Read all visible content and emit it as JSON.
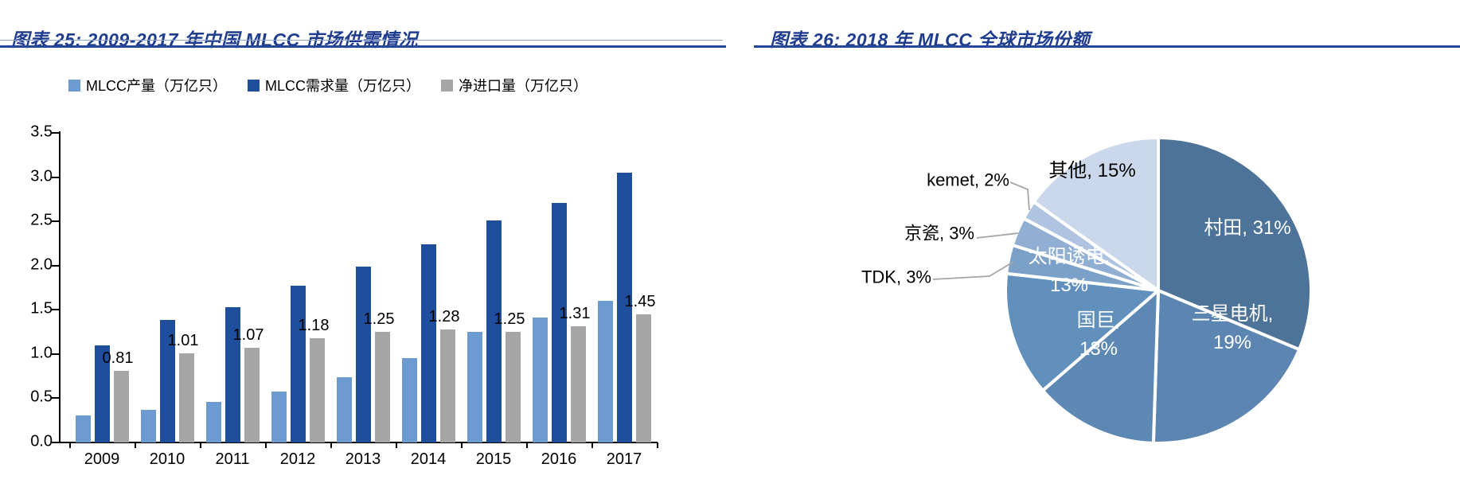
{
  "panels": {
    "left": {
      "title": "图表 25: 2009-2017 年中国 MLCC 市场供需情况",
      "title_color": "#1F3C8F",
      "rule_color": "#24479A",
      "thin_rule_color": "#8FA5CE"
    },
    "right": {
      "title": "图表 26: 2018 年 MLCC 全球市场份额",
      "title_color": "#1F3C8F",
      "rule_color": "#24479A"
    }
  },
  "chart_data": [
    {
      "type": "bar",
      "title": "图表 25: 2009-2017 年中国 MLCC 市场供需情况",
      "categories": [
        "2009",
        "2010",
        "2011",
        "2012",
        "2013",
        "2014",
        "2015",
        "2016",
        "2017"
      ],
      "series": [
        {
          "key": "production",
          "name": "MLCC产量（万亿只）",
          "color": "#6D9BD1",
          "values": [
            0.31,
            0.37,
            0.46,
            0.58,
            0.74,
            0.95,
            1.25,
            1.41,
            1.6
          ]
        },
        {
          "key": "demand",
          "name": "MLCC需求量（万亿只）",
          "color": "#1F4E9C",
          "values": [
            1.1,
            1.39,
            1.53,
            1.77,
            1.99,
            2.24,
            2.51,
            2.71,
            3.05
          ]
        },
        {
          "key": "net-import",
          "name": "净进口量（万亿只）",
          "color": "#A6A6A6",
          "values": [
            0.81,
            1.01,
            1.07,
            1.18,
            1.25,
            1.28,
            1.25,
            1.31,
            1.45
          ],
          "data_labels": [
            "0.81",
            "1.01",
            "1.07",
            "1.18",
            "1.25",
            "1.28",
            "1.25",
            "1.31",
            "1.45"
          ]
        }
      ],
      "xlabel": "",
      "ylabel": "",
      "ylim": [
        0,
        3.5
      ],
      "ytick_step": 0.5,
      "ytick_labels": [
        "0.0",
        "0.5",
        "1.0",
        "1.5",
        "2.0",
        "2.5",
        "3.0",
        "3.5"
      ],
      "legend_position": "top",
      "grid": false,
      "axis_color": "#000000",
      "label_color": "#000000"
    },
    {
      "type": "pie",
      "title": "图表 26: 2018 年 MLCC 全球市场份额",
      "start": "top",
      "direction": "clockwise",
      "separator_color": "#FFFFFF",
      "leader_line_color": "#A6A6A6",
      "slices": [
        {
          "name": "村田",
          "pct": 31,
          "color": "#4E7398",
          "text": "村田, 31%",
          "label_placement": "inside",
          "label_color": "#FFFFFF"
        },
        {
          "name": "三星电机",
          "pct": 19,
          "color": "#5C86B1",
          "text": "三星电机,\n19%",
          "label_placement": "inside",
          "label_color": "#FFFFFF"
        },
        {
          "name": "国巨",
          "pct": 13,
          "color": "#5E88B4",
          "text": "国巨,\n13%",
          "label_placement": "inside",
          "label_color": "#FFFFFF"
        },
        {
          "name": "太阳诱电",
          "pct": 13,
          "color": "#6290BC",
          "text": "太阳诱电,\n13%",
          "label_placement": "inside",
          "label_color": "#FFFFFF"
        },
        {
          "name": "TDK",
          "pct": 3,
          "color": "#7BA1C9",
          "text": "TDK, 3%",
          "label_placement": "outside",
          "label_color": "#000000"
        },
        {
          "name": "京瓷",
          "pct": 3,
          "color": "#91AFD3",
          "text": "京瓷, 3%",
          "label_placement": "outside",
          "label_color": "#000000"
        },
        {
          "name": "kemet",
          "pct": 2,
          "color": "#AFC4E0",
          "text": "kemet, 2%",
          "label_placement": "outside",
          "label_color": "#000000"
        },
        {
          "name": "其他",
          "pct": 15,
          "color": "#CBD8EB",
          "text": "其他, 15%",
          "label_placement": "inside",
          "label_color": "#000000"
        }
      ]
    }
  ]
}
